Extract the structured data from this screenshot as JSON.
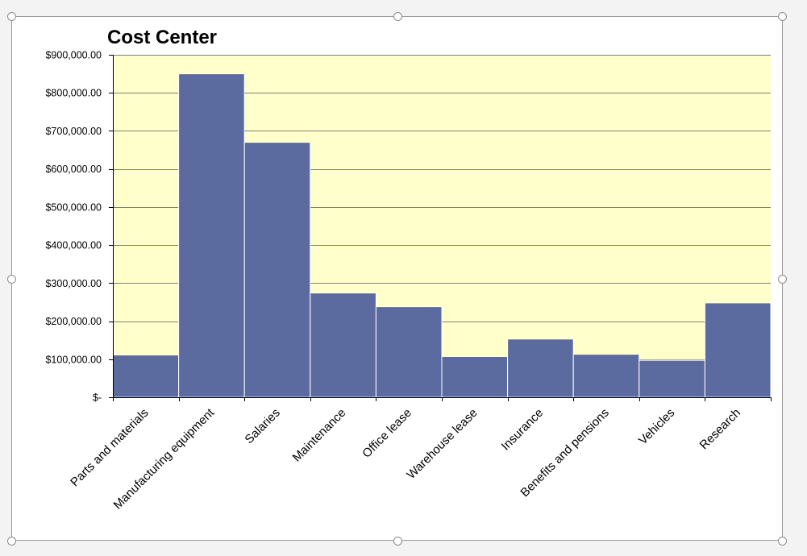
{
  "chart_data": {
    "type": "bar",
    "title": "Cost Center",
    "categories": [
      "Parts and materials",
      "Manufacturing equipment",
      "Salaries",
      "Maintenance",
      "Office lease",
      "Warehouse lease",
      "Insurance",
      "Benefits and pensions",
      "Vehicles",
      "Research"
    ],
    "values": [
      111000,
      850000,
      670000,
      274000,
      238000,
      107000,
      153000,
      113000,
      97000,
      248000
    ],
    "ylim": [
      0,
      900000
    ],
    "yticks": [
      0,
      100000,
      200000,
      300000,
      400000,
      500000,
      600000,
      700000,
      800000,
      900000
    ],
    "ytick_labels": [
      "$-",
      "$100,000.00",
      "$200,000.00",
      "$300,000.00",
      "$400,000.00",
      "$500,000.00",
      "$600,000.00",
      "$700,000.00",
      "$800,000.00",
      "$900,000.00"
    ],
    "xlabel": "",
    "ylabel": "",
    "grid": true,
    "legend": "none",
    "colors": {
      "bar": "#5b6b9f",
      "bar_edge": "#ffffff",
      "plot_background": "#ffffcc",
      "gridline": "#7f7f7f",
      "axis": "#000000"
    }
  }
}
